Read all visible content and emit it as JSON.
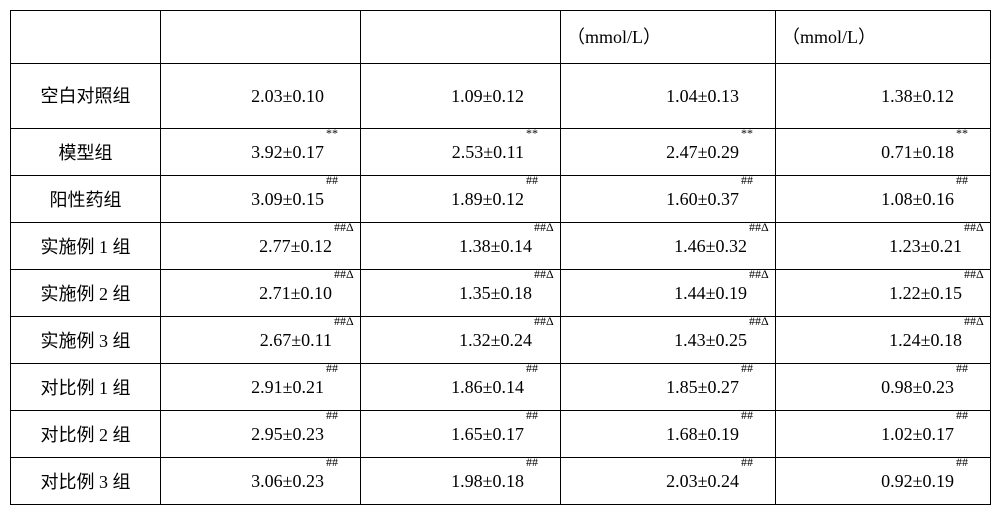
{
  "header": {
    "c0": "",
    "c1": "",
    "c2": "",
    "c3": "（mmol/L）",
    "c4": "（mmol/L）"
  },
  "rows": [
    {
      "label": "空白对照组",
      "layout": "row0",
      "cells": [
        {
          "v": "2.03±0.10",
          "s": "",
          "pad": "lg"
        },
        {
          "v": "1.09±0.12",
          "s": "",
          "pad": "lg"
        },
        {
          "v": "1.04±0.13",
          "s": "",
          "pad": "lg"
        },
        {
          "v": "1.38±0.12",
          "s": "",
          "pad": "lg"
        }
      ]
    },
    {
      "label": "模型组",
      "layout": "rowN",
      "cells": [
        {
          "v": "3.92±0.17",
          "s": "**",
          "pad": "lg"
        },
        {
          "v": "2.53±0.11",
          "s": "**",
          "pad": "lg"
        },
        {
          "v": "2.47±0.29",
          "s": "**",
          "pad": "lg"
        },
        {
          "v": "0.71±0.18",
          "s": "**",
          "pad": "lg"
        }
      ]
    },
    {
      "label": "阳性药组",
      "layout": "rowN",
      "cells": [
        {
          "v": "3.09±0.15",
          "s": "##",
          "pad": "lg"
        },
        {
          "v": "1.89±0.12",
          "s": "##",
          "pad": "lg"
        },
        {
          "v": "1.60±0.37",
          "s": "##",
          "pad": "lg"
        },
        {
          "v": "1.08±0.16",
          "s": "##",
          "pad": "lg"
        }
      ]
    },
    {
      "label": "实施例 1 组",
      "layout": "rowN",
      "cells": [
        {
          "v": "2.77±0.12",
          "s": "##Δ",
          "pad": "sm"
        },
        {
          "v": "1.38±0.14",
          "s": "##Δ",
          "pad": "sm"
        },
        {
          "v": "1.46±0.32",
          "s": "##Δ",
          "pad": "sm"
        },
        {
          "v": "1.23±0.21",
          "s": "##Δ",
          "pad": "sm"
        }
      ]
    },
    {
      "label": "实施例 2 组",
      "layout": "rowN",
      "cells": [
        {
          "v": "2.71±0.10",
          "s": "##Δ",
          "pad": "sm"
        },
        {
          "v": "1.35±0.18",
          "s": "##Δ",
          "pad": "sm"
        },
        {
          "v": "1.44±0.19",
          "s": "##Δ",
          "pad": "sm"
        },
        {
          "v": "1.22±0.15",
          "s": "##Δ",
          "pad": "sm"
        }
      ]
    },
    {
      "label": "实施例 3 组",
      "layout": "rowN",
      "cells": [
        {
          "v": "2.67±0.11",
          "s": "##Δ",
          "pad": "sm"
        },
        {
          "v": "1.32±0.24",
          "s": "##Δ",
          "pad": "sm"
        },
        {
          "v": "1.43±0.25",
          "s": "##Δ",
          "pad": "sm"
        },
        {
          "v": "1.24±0.18",
          "s": "##Δ",
          "pad": "sm"
        }
      ]
    },
    {
      "label": "对比例 1 组",
      "layout": "rowN",
      "cells": [
        {
          "v": "2.91±0.21",
          "s": "##",
          "pad": "lg"
        },
        {
          "v": "1.86±0.14",
          "s": "##",
          "pad": "lg"
        },
        {
          "v": "1.85±0.27",
          "s": "##",
          "pad": "lg"
        },
        {
          "v": "0.98±0.23",
          "s": "##",
          "pad": "lg"
        }
      ]
    },
    {
      "label": "对比例 2 组",
      "layout": "rowN",
      "cells": [
        {
          "v": "2.95±0.23",
          "s": "##",
          "pad": "lg"
        },
        {
          "v": "1.65±0.17",
          "s": "##",
          "pad": "lg"
        },
        {
          "v": "1.68±0.19",
          "s": "##",
          "pad": "lg"
        },
        {
          "v": "1.02±0.17",
          "s": "##",
          "pad": "lg"
        }
      ]
    },
    {
      "label": "对比例 3 组",
      "layout": "rowN",
      "cells": [
        {
          "v": "3.06±0.23",
          "s": "##",
          "pad": "lg"
        },
        {
          "v": "1.98±0.18",
          "s": "##",
          "pad": "lg"
        },
        {
          "v": "2.03±0.24",
          "s": "##",
          "pad": "lg"
        },
        {
          "v": "0.92±0.19",
          "s": "##",
          "pad": "lg"
        }
      ]
    }
  ]
}
